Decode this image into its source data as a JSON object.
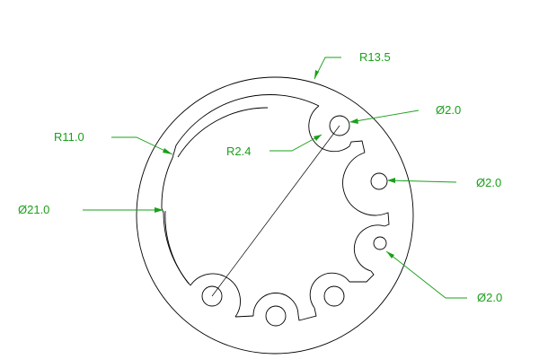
{
  "colors": {
    "geometry": "#000000",
    "dimension": "#1aa01a",
    "background": "#ffffff"
  },
  "dimensions": {
    "outer_radius": "R13.5",
    "inner_radius": "R11.0",
    "outer_diameter": "Ø21.0",
    "scallop_radius": "R2.4",
    "hole_top": "Ø2.0",
    "hole_right": "Ø2.0",
    "hole_lower_right": "Ø2.0"
  }
}
